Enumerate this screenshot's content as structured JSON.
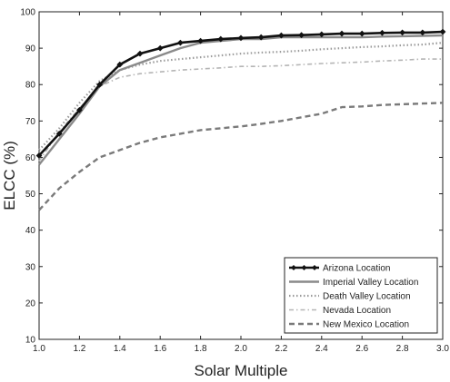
{
  "chart_data": {
    "type": "line",
    "xlabel": "Solar Multiple",
    "ylabel": "ELCC (%)",
    "xlim": [
      1.0,
      3.0
    ],
    "ylim": [
      10,
      100
    ],
    "xticks": [
      "1.0",
      "1.2",
      "1.4",
      "1.6",
      "1.8",
      "2.0",
      "2.2",
      "2.4",
      "2.6",
      "2.8",
      "3.0"
    ],
    "yticks": [
      "10",
      "20",
      "30",
      "40",
      "50",
      "60",
      "70",
      "80",
      "90",
      "100"
    ],
    "grid": false,
    "legend_position": "bottom-right",
    "x": [
      1.0,
      1.1,
      1.2,
      1.3,
      1.4,
      1.5,
      1.6,
      1.7,
      1.8,
      1.9,
      2.0,
      2.1,
      2.2,
      2.3,
      2.4,
      2.5,
      2.6,
      2.7,
      2.8,
      2.9,
      3.0
    ],
    "series": [
      {
        "name": "Arizona Location",
        "style": "solid-thick-diamond",
        "color": "#111111",
        "values": [
          60.5,
          66.5,
          73,
          80,
          85.5,
          88.5,
          90,
          91.5,
          92,
          92.5,
          92.8,
          93,
          93.5,
          93.6,
          93.8,
          94,
          94,
          94.2,
          94.3,
          94.3,
          94.5
        ]
      },
      {
        "name": "Imperial Valley Location",
        "style": "solid-gray",
        "color": "#8a8a8a",
        "values": [
          58,
          65,
          72,
          79.5,
          84,
          86,
          88,
          90,
          91.5,
          92,
          92.5,
          92.5,
          93,
          93,
          93,
          93,
          93,
          93.2,
          93.3,
          93.4,
          93.5
        ]
      },
      {
        "name": "Death Valley Location",
        "style": "dotted",
        "color": "#9a9a9a",
        "values": [
          62,
          68,
          75,
          81,
          84,
          85.5,
          86.5,
          87,
          87.5,
          88,
          88.5,
          88.8,
          89,
          89.3,
          89.7,
          90,
          90.3,
          90.5,
          90.8,
          91,
          91.5
        ]
      },
      {
        "name": "Nevada Location",
        "style": "dash-dot-light",
        "color": "#b5b5b5",
        "values": [
          59,
          67,
          73.5,
          79.5,
          82,
          83,
          83.5,
          84,
          84.3,
          84.6,
          85,
          85,
          85.2,
          85.5,
          85.8,
          86,
          86.2,
          86.5,
          86.7,
          87,
          87
        ]
      },
      {
        "name": "New Mexico Location",
        "style": "dashed",
        "color": "#7a7a7a",
        "values": [
          45.5,
          51.5,
          56,
          60,
          62,
          64,
          65.5,
          66.5,
          67.5,
          68,
          68.5,
          69.2,
          70,
          71,
          72,
          73.8,
          74,
          74.4,
          74.6,
          74.8,
          75
        ]
      }
    ]
  }
}
